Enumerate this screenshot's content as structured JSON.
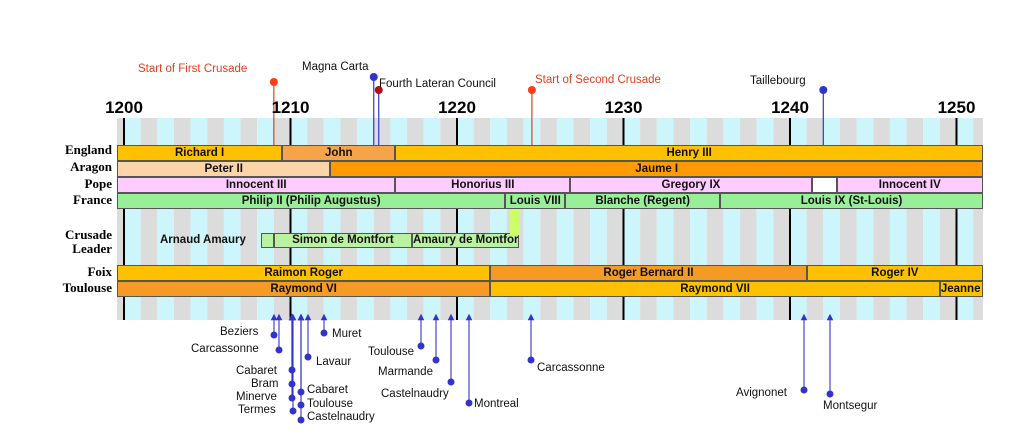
{
  "years": [
    "1200",
    "1210",
    "1220",
    "1230",
    "1240",
    "1250"
  ],
  "rows": [
    {
      "label": "England"
    },
    {
      "label": "Aragon"
    },
    {
      "label": "Pope"
    },
    {
      "label": "France"
    },
    {
      "label": "Crusade\nLeader"
    },
    {
      "label": "Foix"
    },
    {
      "label": "Toulouse"
    }
  ],
  "bars": [
    {
      "row": 0,
      "label": "Richard I",
      "start": 1199,
      "end": 1209.5,
      "color": "#ffc000"
    },
    {
      "row": 0,
      "label": "John",
      "start": 1209.5,
      "end": 1216.3,
      "color": "#f6a44a"
    },
    {
      "row": 0,
      "label": "Henry III",
      "start": 1216.3,
      "end": 1252,
      "color": "#ffc000"
    },
    {
      "row": 1,
      "label": "Peter II",
      "start": 1199,
      "end": 1212.4,
      "color": "#fbd5a8"
    },
    {
      "row": 1,
      "label": "Jaume I",
      "start": 1212.4,
      "end": 1252,
      "color": "#ff9a00"
    },
    {
      "row": 2,
      "label": "Innocent III",
      "start": 1199,
      "end": 1216.3,
      "color": "#ffccff"
    },
    {
      "row": 2,
      "label": "Honorius III",
      "start": 1216.3,
      "end": 1226.8,
      "color": "#ffccff"
    },
    {
      "row": 2,
      "label": "Gregory IX",
      "start": 1226.8,
      "end": 1241.3,
      "color": "#ffccff"
    },
    {
      "row": 2,
      "label": "",
      "start": 1241.3,
      "end": 1242.8,
      "color": "#ffffff"
    },
    {
      "row": 2,
      "label": "Innocent IV",
      "start": 1242.8,
      "end": 1252,
      "color": "#ffccff"
    },
    {
      "row": 3,
      "label": "Philip II (Philip Augustus)",
      "start": 1199,
      "end": 1222.9,
      "color": "#99ee99"
    },
    {
      "row": 3,
      "label": "Louis VIII",
      "start": 1222.9,
      "end": 1226.5,
      "color": "#99ee99"
    },
    {
      "row": 3,
      "label": "Blanche (Regent)",
      "start": 1226.5,
      "end": 1235.8,
      "color": "#99ee99"
    },
    {
      "row": 3,
      "label": "Louis IX (St-Louis)",
      "start": 1235.8,
      "end": 1252,
      "color": "#99ee99"
    },
    {
      "row": 4,
      "label": "Simon de Montfort",
      "start": 1209,
      "end": 1217.3,
      "color": "#bbf2a2"
    },
    {
      "row": 4,
      "label": "Amaury de Montfort",
      "start": 1217.3,
      "end": 1223.7,
      "color": "#bbf2a2"
    },
    {
      "row": 5,
      "label": "Raimon Roger",
      "start": 1199,
      "end": 1222,
      "color": "#ffc000"
    },
    {
      "row": 5,
      "label": "Roger Bernard II",
      "start": 1222,
      "end": 1241,
      "color": "#f59a22"
    },
    {
      "row": 5,
      "label": "Roger IV",
      "start": 1241,
      "end": 1252,
      "color": "#ffc000"
    },
    {
      "row": 6,
      "label": "Raymond VI",
      "start": 1199,
      "end": 1222,
      "color": "#f59a22"
    },
    {
      "row": 6,
      "label": "Raymond VII",
      "start": 1222,
      "end": 1249,
      "color": "#ffc000"
    },
    {
      "row": 6,
      "label": "Jeanne m. Al",
      "start": 1249,
      "end": 1252,
      "color": "#ffc000"
    }
  ],
  "crusade_leader_extra": {
    "label": "Arnaud Amaury",
    "start": 1208.2,
    "end": 1209,
    "color": "#bbf2a2",
    "green_marker": {
      "start": 1223.2,
      "end": 1223.8,
      "color": "#ccff66"
    }
  },
  "events_top": [
    {
      "label": "Start of First Crusade",
      "year": 1209,
      "color": "#e0401c",
      "dot": "#ff3b1a"
    },
    {
      "label": "Magna Carta",
      "year": 1215,
      "color": "#111111",
      "dot": "#3333cc"
    },
    {
      "label": "Fourth Lateran Council",
      "year": 1215.3,
      "color": "#111111",
      "dot": "#b01010"
    },
    {
      "label": "Start of Second Crusade",
      "year": 1224.5,
      "color": "#e0401c",
      "dot": "#ff3b1a"
    },
    {
      "label": "Taillebourg",
      "year": 1242,
      "color": "#111111",
      "dot": "#3333cc"
    }
  ],
  "events_bottom": [
    {
      "label": "Beziers",
      "year": 1209
    },
    {
      "label": "Carcassonne",
      "year": 1209
    },
    {
      "label": "Cabaret",
      "year": 1210
    },
    {
      "label": "Bram",
      "year": 1210
    },
    {
      "label": "Minerve",
      "year": 1210
    },
    {
      "label": "Termes",
      "year": 1210
    },
    {
      "label": "Lavaur",
      "year": 1211
    },
    {
      "label": "Cabaret",
      "year": 1211
    },
    {
      "label": "Toulouse",
      "year": 1211
    },
    {
      "label": "Castelnaudry",
      "year": 1211
    },
    {
      "label": "Muret",
      "year": 1213
    },
    {
      "label": "Toulouse",
      "year": 1218
    },
    {
      "label": "Marmande",
      "year": 1219
    },
    {
      "label": "Castelnaudry",
      "year": 1220
    },
    {
      "label": "Montreal",
      "year": 1221
    },
    {
      "label": "Carcassonne",
      "year": 1224
    },
    {
      "label": "Avignonet",
      "year": 1242
    },
    {
      "label": "Montsegur",
      "year": 1244
    }
  ],
  "colors": {
    "stripe_gray": "#dcdcdc",
    "stripe_cyan": "#ccf6fb",
    "arrow_blue": "#3333cc"
  }
}
